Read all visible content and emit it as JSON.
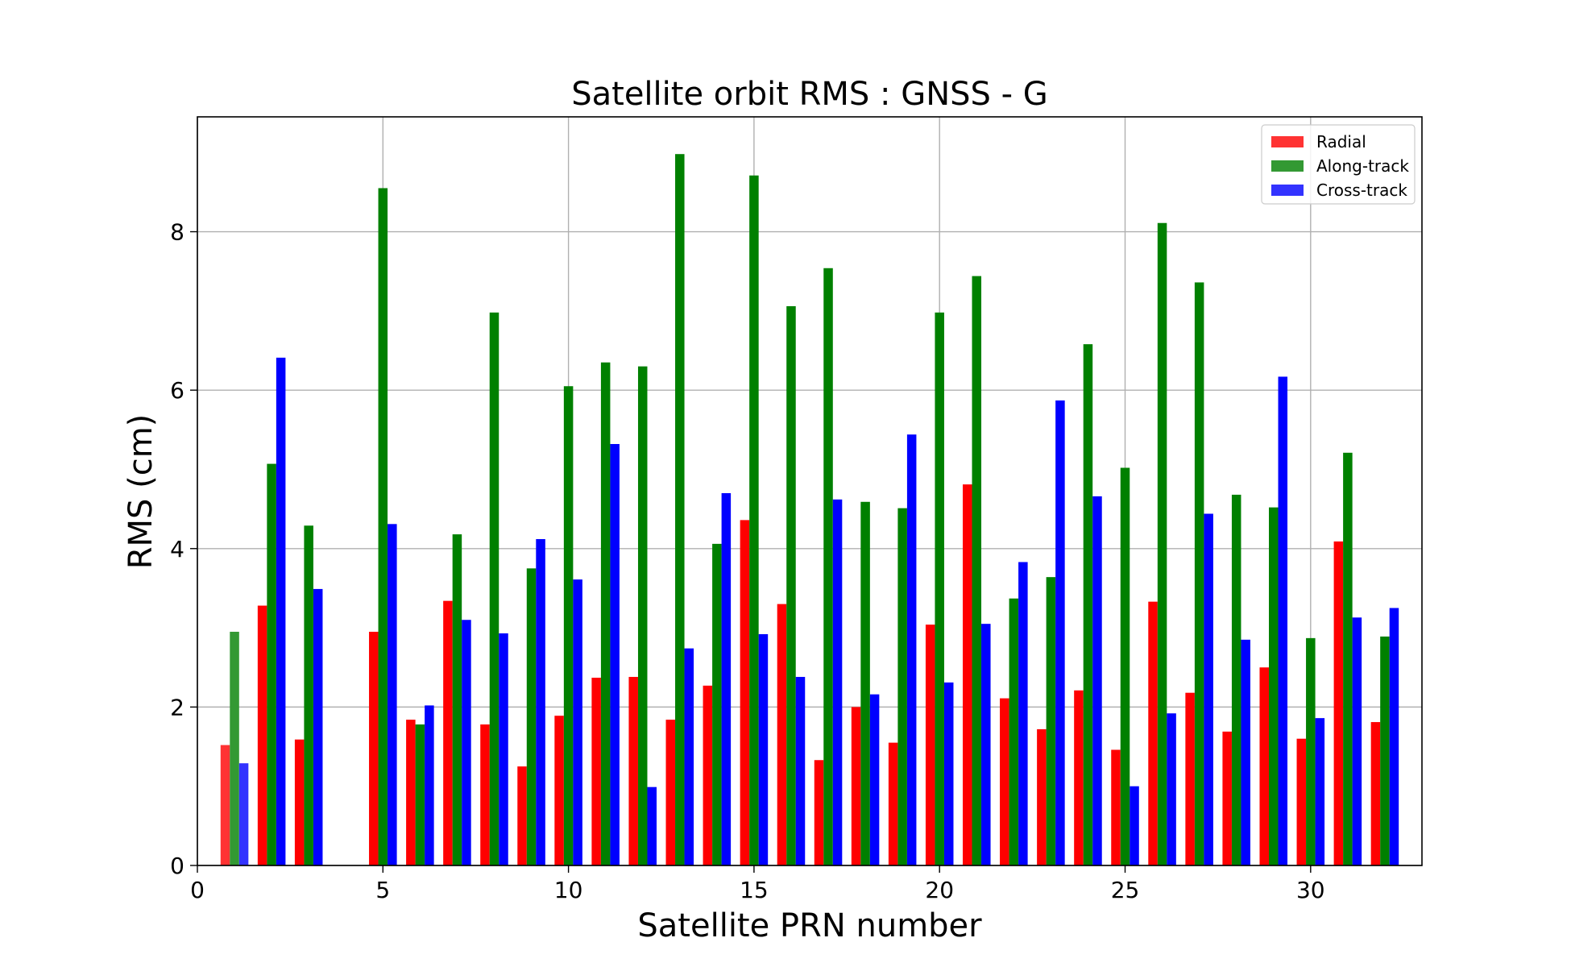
{
  "chart_data": {
    "type": "bar",
    "title": "Satellite orbit RMS : GNSS - G",
    "xlabel": "Satellite PRN number",
    "ylabel": "RMS (cm)",
    "xlim": [
      0,
      33
    ],
    "ylim": [
      0,
      9.45
    ],
    "xticks": [
      0,
      5,
      10,
      15,
      20,
      25,
      30
    ],
    "yticks": [
      0,
      2,
      4,
      6,
      8
    ],
    "grid": true,
    "legend_position": "top-right",
    "x": [
      1,
      2,
      3,
      4,
      5,
      6,
      7,
      8,
      9,
      10,
      11,
      12,
      13,
      14,
      15,
      16,
      17,
      18,
      19,
      20,
      21,
      22,
      23,
      24,
      25,
      26,
      27,
      28,
      29,
      30,
      31,
      32
    ],
    "series": [
      {
        "name": "Radial",
        "color": "#ff0000",
        "legend_color": "#ff3333",
        "values": [
          1.52,
          3.28,
          1.59,
          0,
          2.95,
          1.84,
          3.34,
          1.78,
          1.25,
          1.89,
          2.37,
          2.38,
          1.84,
          2.27,
          4.36,
          3.3,
          1.33,
          2.0,
          1.55,
          3.04,
          4.81,
          2.11,
          1.72,
          2.21,
          1.46,
          3.33,
          2.18,
          1.69,
          2.5,
          1.6,
          4.09,
          1.81
        ]
      },
      {
        "name": "Along-track",
        "color": "#008000",
        "legend_color": "#339933",
        "values": [
          2.95,
          5.07,
          4.29,
          0,
          8.55,
          1.78,
          4.18,
          6.98,
          3.75,
          6.05,
          6.35,
          6.3,
          8.98,
          4.06,
          8.71,
          7.06,
          7.54,
          4.59,
          4.51,
          6.98,
          7.44,
          3.37,
          3.64,
          6.58,
          5.02,
          8.11,
          7.36,
          4.68,
          4.52,
          2.87,
          5.21,
          2.89
        ]
      },
      {
        "name": "Cross-track",
        "color": "#0000ff",
        "legend_color": "#3333ff",
        "values": [
          1.29,
          6.41,
          3.49,
          0,
          4.31,
          2.02,
          3.1,
          2.93,
          4.12,
          3.61,
          5.32,
          0.99,
          2.74,
          4.7,
          2.92,
          2.38,
          4.62,
          2.16,
          5.44,
          2.31,
          3.05,
          3.83,
          5.87,
          4.66,
          1.0,
          1.92,
          4.44,
          2.85,
          6.17,
          1.86,
          3.13,
          3.25
        ]
      }
    ],
    "faded_x": [
      1
    ]
  }
}
